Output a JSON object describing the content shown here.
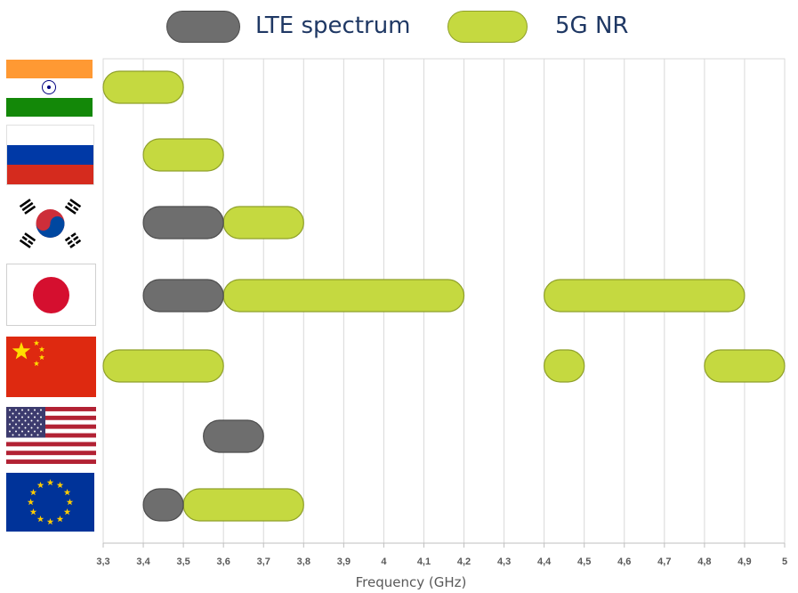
{
  "legend": {
    "lte_label": "LTE spectrum",
    "nr_label": "5G NR"
  },
  "colors": {
    "lte": "#6e6e6e",
    "lte_border": "#4d4d4d",
    "nr": "#c5d940",
    "nr_border": "#8fa02a",
    "grid": "#d9d9d9",
    "text": "#1f3864"
  },
  "countries": [
    "India",
    "Russia",
    "South Korea",
    "Japan",
    "China",
    "United States",
    "European Union"
  ],
  "chart_data": {
    "type": "range-bar",
    "xlabel": "Frequency (GHz)",
    "xlim": [
      3.3,
      5.0
    ],
    "x_ticks": [
      "3,3",
      "3,4",
      "3,5",
      "3,6",
      "3,7",
      "3,8",
      "3,9",
      "4",
      "4,1",
      "4,2",
      "4,3",
      "4,4",
      "4,5",
      "4,6",
      "4,7",
      "4,8",
      "4,9",
      "5"
    ],
    "categories": [
      "India",
      "Russia",
      "South Korea",
      "Japan",
      "China",
      "United States",
      "European Union"
    ],
    "series": [
      {
        "name": "LTE spectrum",
        "ranges": [
          {
            "category": "South Korea",
            "start": 3.4,
            "end": 3.6
          },
          {
            "category": "Japan",
            "start": 3.4,
            "end": 3.6
          },
          {
            "category": "United States",
            "start": 3.55,
            "end": 3.7
          },
          {
            "category": "European Union",
            "start": 3.4,
            "end": 3.5
          }
        ]
      },
      {
        "name": "5G NR",
        "ranges": [
          {
            "category": "India",
            "start": 3.3,
            "end": 3.5
          },
          {
            "category": "Russia",
            "start": 3.4,
            "end": 3.6
          },
          {
            "category": "South Korea",
            "start": 3.6,
            "end": 3.8
          },
          {
            "category": "Japan",
            "start": 3.6,
            "end": 4.2
          },
          {
            "category": "Japan",
            "start": 4.4,
            "end": 4.9
          },
          {
            "category": "China",
            "start": 3.3,
            "end": 3.6
          },
          {
            "category": "China",
            "start": 4.4,
            "end": 4.5
          },
          {
            "category": "China",
            "start": 4.8,
            "end": 5.0
          },
          {
            "category": "European Union",
            "start": 3.5,
            "end": 3.8
          }
        ]
      }
    ]
  }
}
